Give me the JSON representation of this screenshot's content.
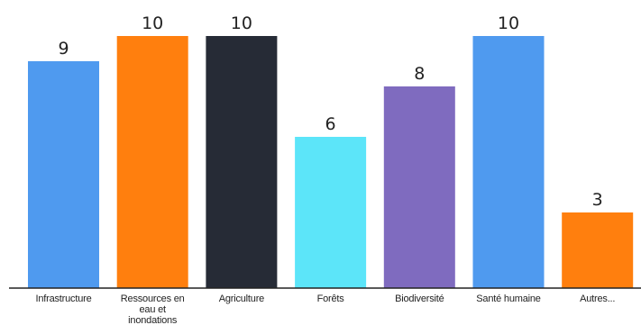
{
  "chart_data": {
    "type": "bar",
    "categories": [
      [
        "Infrastructure"
      ],
      [
        "Ressources en",
        "eau et",
        "inondations"
      ],
      [
        "Agriculture"
      ],
      [
        "Forêts"
      ],
      [
        "Biodiversité"
      ],
      [
        "Santé humaine"
      ],
      [
        "Autres..."
      ]
    ],
    "values": [
      9,
      10,
      10,
      6,
      8,
      10,
      3
    ],
    "colors": [
      "#4f9aef",
      "#ff7f0e",
      "#262b36",
      "#5ce5f9",
      "#7f6bbf",
      "#4f9aef",
      "#ff7f0e"
    ],
    "ylim": [
      0,
      10
    ],
    "grid": false,
    "legend": "none"
  }
}
